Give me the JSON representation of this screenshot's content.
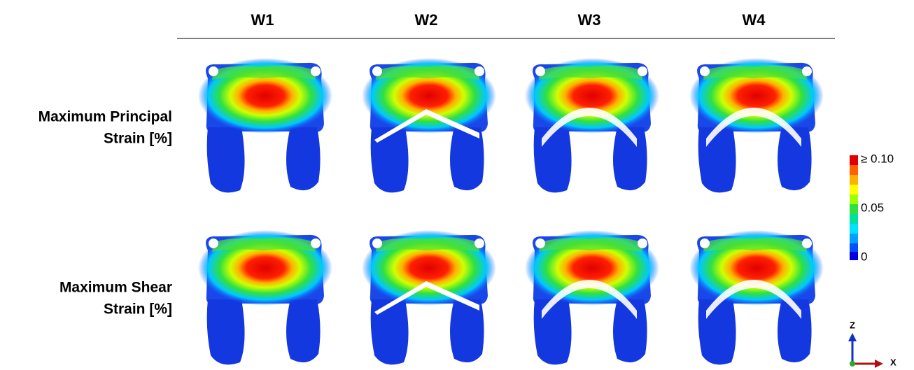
{
  "columns": [
    "W1",
    "W2",
    "W3",
    "W4"
  ],
  "rows": [
    {
      "lines": [
        "Maximum Principal",
        "Strain [%]"
      ]
    },
    {
      "lines": [
        "Maximum Shear",
        "Strain [%]"
      ]
    }
  ],
  "legend": {
    "labels": [
      "≥ 0.10",
      "0.05",
      "0"
    ]
  },
  "axes": {
    "z": "Z",
    "x": "X"
  }
}
